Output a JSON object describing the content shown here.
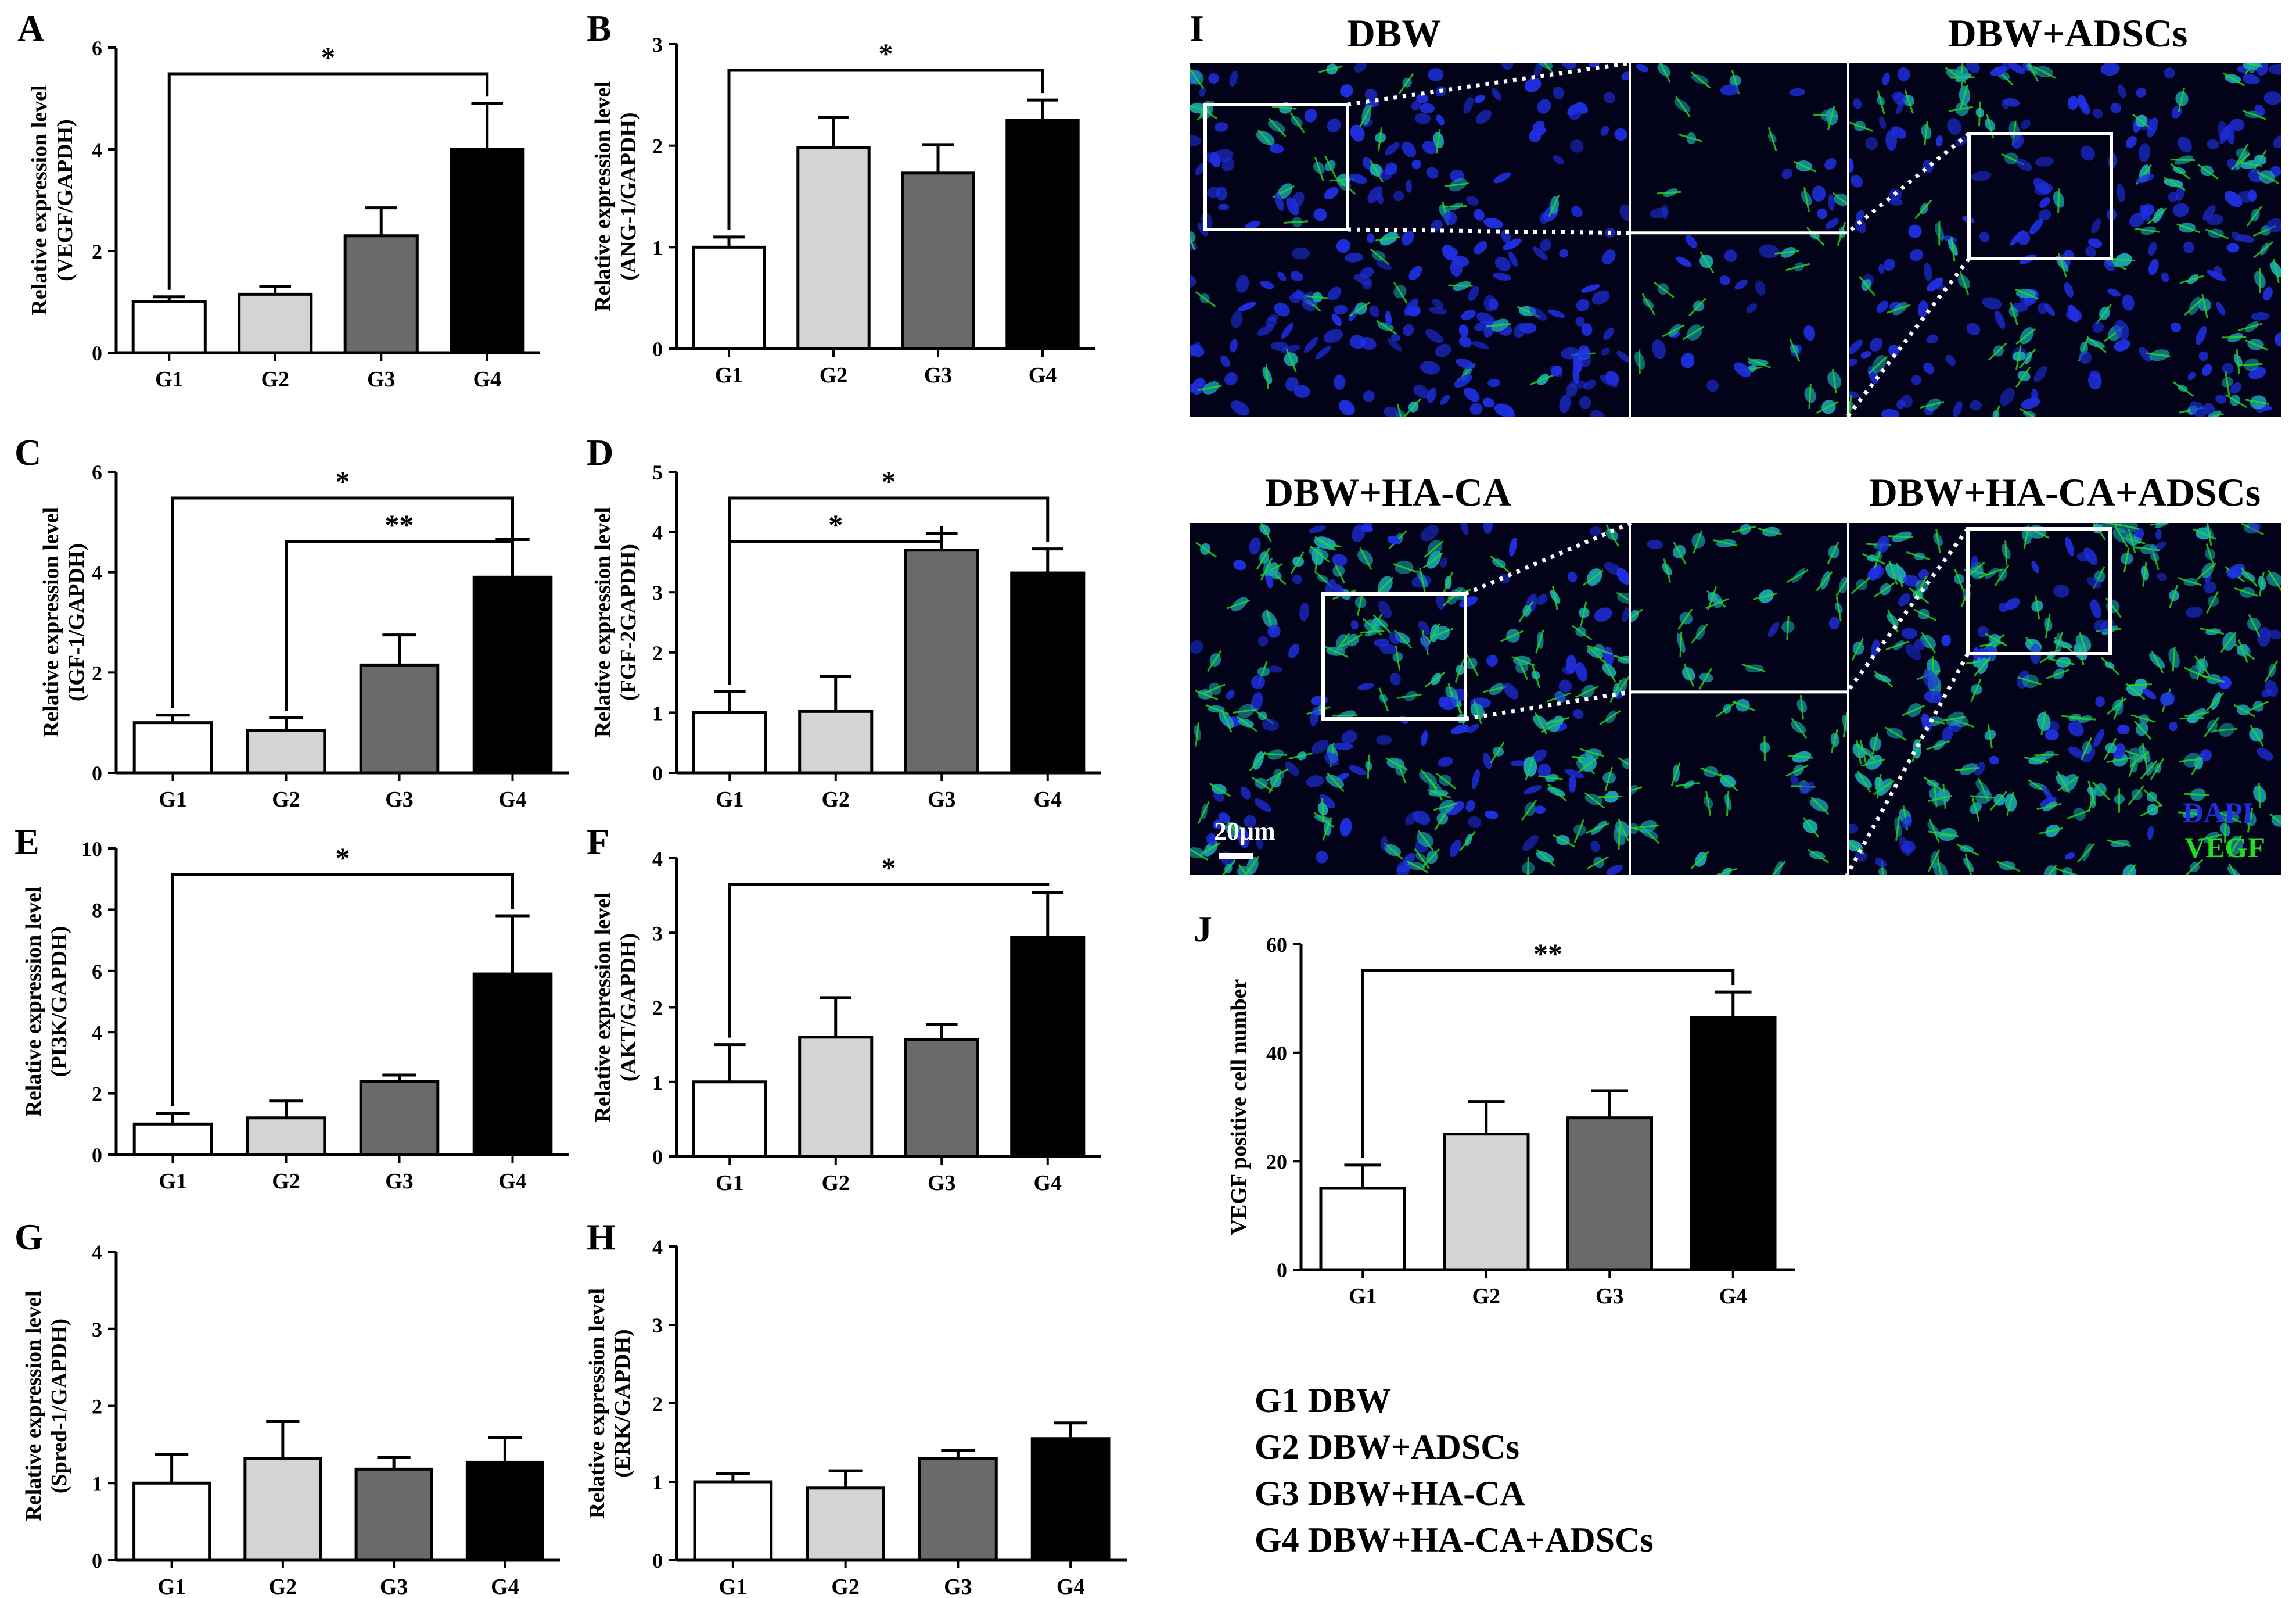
{
  "colors": {
    "G1": "#ffffff",
    "G2": "#d4d4d4",
    "G3": "#6a6a6a",
    "G4": "#000000",
    "DAPI": "#1f2fe0",
    "VEGF": "#22dd22",
    "micrograph_bg": "#020318"
  },
  "chart_data": [
    {
      "panel": "A",
      "type": "bar",
      "categories": [
        "G1",
        "G2",
        "G3",
        "G4"
      ],
      "values": [
        1.0,
        1.15,
        2.3,
        4.0
      ],
      "errors": [
        0.1,
        0.15,
        0.55,
        0.9
      ],
      "ylim": [
        0,
        6
      ],
      "yticks": [
        "0",
        "2",
        "4",
        "6"
      ],
      "ylabel_lines": [
        "Relative expression level",
        "(VEGF/GAPDH)"
      ],
      "significance": [
        {
          "from": 0,
          "to": 3,
          "label": "*"
        }
      ]
    },
    {
      "panel": "B",
      "type": "bar",
      "categories": [
        "G1",
        "G2",
        "G3",
        "G4"
      ],
      "values": [
        1.0,
        1.98,
        1.73,
        2.25
      ],
      "errors": [
        0.1,
        0.3,
        0.28,
        0.2
      ],
      "ylim": [
        0,
        3
      ],
      "yticks": [
        "0",
        "1",
        "2",
        "3"
      ],
      "ylabel_lines": [
        "Relative expression level",
        "(ANG-1/GAPDH)"
      ],
      "significance": [
        {
          "from": 0,
          "to": 3,
          "label": "*"
        }
      ]
    },
    {
      "panel": "C",
      "type": "bar",
      "categories": [
        "G1",
        "G2",
        "G3",
        "G4"
      ],
      "values": [
        1.0,
        0.85,
        2.15,
        3.9
      ],
      "errors": [
        0.15,
        0.25,
        0.6,
        0.75
      ],
      "ylim": [
        0,
        6
      ],
      "yticks": [
        "0",
        "2",
        "4",
        "6"
      ],
      "ylabel_lines": [
        "Relative expression level",
        "(IGF-1/GAPDH)"
      ],
      "significance": [
        {
          "from": 0,
          "to": 3,
          "label": "*"
        },
        {
          "from": 1,
          "to": 3,
          "label": "**"
        }
      ]
    },
    {
      "panel": "D",
      "type": "bar",
      "categories": [
        "G1",
        "G2",
        "G3",
        "G4"
      ],
      "values": [
        1.0,
        1.02,
        3.7,
        3.32
      ],
      "errors": [
        0.35,
        0.58,
        0.28,
        0.4
      ],
      "ylim": [
        0,
        5
      ],
      "yticks": [
        "0",
        "1",
        "2",
        "3",
        "4",
        "5"
      ],
      "ylabel_lines": [
        "Relative expression level",
        "(FGF-2GAPDH)"
      ],
      "significance": [
        {
          "from": 0,
          "to": 2,
          "label": "*"
        },
        {
          "from": 0,
          "to": 3,
          "label": "*"
        }
      ]
    },
    {
      "panel": "E",
      "type": "bar",
      "categories": [
        "G1",
        "G2",
        "G3",
        "G4"
      ],
      "values": [
        1.0,
        1.2,
        2.4,
        5.9
      ],
      "errors": [
        0.35,
        0.55,
        0.2,
        1.9
      ],
      "ylim": [
        0,
        10
      ],
      "yticks": [
        "0",
        "2",
        "4",
        "6",
        "8",
        "10"
      ],
      "ylabel_lines": [
        "Relative expression level",
        "(PI3K/GAPDH)"
      ],
      "significance": [
        {
          "from": 0,
          "to": 3,
          "label": "*"
        }
      ]
    },
    {
      "panel": "F",
      "type": "bar",
      "categories": [
        "G1",
        "G2",
        "G3",
        "G4"
      ],
      "values": [
        1.0,
        1.6,
        1.57,
        2.94
      ],
      "errors": [
        0.5,
        0.53,
        0.2,
        0.6
      ],
      "ylim": [
        0,
        4
      ],
      "yticks": [
        "0",
        "1",
        "2",
        "3",
        "4"
      ],
      "ylabel_lines": [
        "Relative expression level",
        "(AKT/GAPDH)"
      ],
      "significance": [
        {
          "from": 0,
          "to": 3,
          "label": "*"
        }
      ]
    },
    {
      "panel": "G",
      "type": "bar",
      "categories": [
        "G1",
        "G2",
        "G3",
        "G4"
      ],
      "values": [
        1.0,
        1.32,
        1.18,
        1.27
      ],
      "errors": [
        0.37,
        0.48,
        0.15,
        0.32
      ],
      "ylim": [
        0,
        4
      ],
      "yticks": [
        "0",
        "1",
        "2",
        "3",
        "4"
      ],
      "ylabel_lines": [
        "Relative expression level",
        "(Spred-1/GAPDH)"
      ],
      "significance": []
    },
    {
      "panel": "H",
      "type": "bar",
      "categories": [
        "G1",
        "G2",
        "G3",
        "G4"
      ],
      "values": [
        1.0,
        0.92,
        1.3,
        1.55
      ],
      "errors": [
        0.1,
        0.22,
        0.1,
        0.2
      ],
      "ylim": [
        0,
        4
      ],
      "yticks": [
        "0",
        "1",
        "2",
        "3",
        "4"
      ],
      "ylabel_lines": [
        "Relative expression level",
        "(ERK/GAPDH)"
      ],
      "significance": []
    },
    {
      "panel": "J",
      "type": "bar",
      "categories": [
        "G1",
        "G2",
        "G3",
        "G4"
      ],
      "values": [
        15,
        25,
        28,
        46.5
      ],
      "errors": [
        4.3,
        6,
        5,
        4.7
      ],
      "ylim": [
        0,
        60
      ],
      "yticks": [
        "0",
        "20",
        "40",
        "60"
      ],
      "ylabel_lines": [
        "VEGF positive cell number"
      ],
      "significance": [
        {
          "from": 0,
          "to": 3,
          "label": "**"
        }
      ]
    }
  ],
  "panel_I": {
    "label": "I",
    "micrographs": [
      {
        "name": "dbw",
        "title": "DBW"
      },
      {
        "name": "dbw-adscs",
        "title": "DBW+ADSCs"
      },
      {
        "name": "dbw-haca",
        "title": "DBW+HA-CA"
      },
      {
        "name": "dbw-haca-adscs",
        "title": "DBW+HA-CA+ADSCs"
      }
    ],
    "scale_bar_label": "20μm",
    "channel_labels": [
      "DAPI",
      "VEGF"
    ]
  },
  "legend": [
    "G1 DBW",
    "G2 DBW+ADSCs",
    "G3 DBW+HA-CA",
    "G4 DBW+HA-CA+ADSCs"
  ]
}
